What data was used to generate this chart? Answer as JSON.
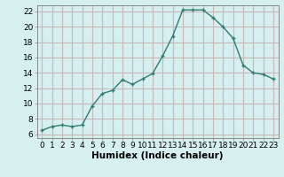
{
  "x": [
    0,
    1,
    2,
    3,
    4,
    5,
    6,
    7,
    8,
    9,
    10,
    11,
    12,
    13,
    14,
    15,
    16,
    17,
    18,
    19,
    20,
    21,
    22,
    23
  ],
  "y": [
    6.5,
    7.0,
    7.2,
    7.0,
    7.2,
    9.7,
    11.3,
    11.7,
    13.1,
    12.5,
    13.2,
    13.9,
    16.2,
    18.8,
    22.2,
    22.2,
    22.2,
    21.2,
    20.0,
    18.5,
    15.0,
    14.0,
    13.8,
    13.2
  ],
  "xlim": [
    -0.5,
    23.5
  ],
  "ylim": [
    5.5,
    22.8
  ],
  "yticks": [
    6,
    8,
    10,
    12,
    14,
    16,
    18,
    20,
    22
  ],
  "xticks": [
    0,
    1,
    2,
    3,
    4,
    5,
    6,
    7,
    8,
    9,
    10,
    11,
    12,
    13,
    14,
    15,
    16,
    17,
    18,
    19,
    20,
    21,
    22,
    23
  ],
  "xlabel": "Humidex (Indice chaleur)",
  "line_color": "#2e7d6e",
  "marker_color": "#2e7d6e",
  "bg_color": "#d6efef",
  "grid_color": "#c8b8b8",
  "spine_color": "#888888",
  "tick_label_fontsize": 6.5,
  "xlabel_fontsize": 7.5,
  "marker_size": 2.5,
  "line_width": 1.0
}
